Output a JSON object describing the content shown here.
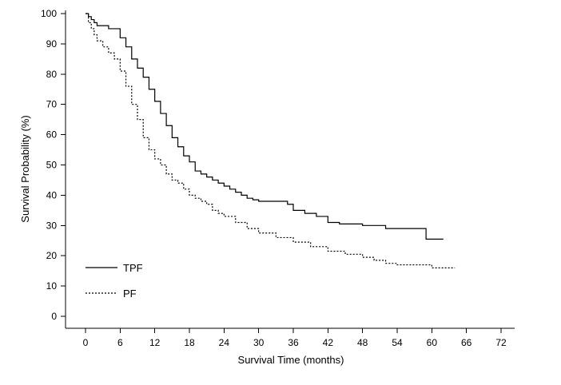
{
  "chart_data": {
    "type": "line",
    "title": "",
    "xlabel": "Survival Time (months)",
    "ylabel": "Survival Probability (%)",
    "xlim": [
      0,
      72
    ],
    "ylim": [
      0,
      100
    ],
    "xticks": [
      0,
      6,
      12,
      18,
      24,
      30,
      36,
      42,
      48,
      54,
      60,
      66,
      72
    ],
    "yticks": [
      0,
      10,
      20,
      30,
      40,
      50,
      60,
      70,
      80,
      90,
      100
    ],
    "grid": false,
    "legend_position": "bottom-left",
    "step": true,
    "series": [
      {
        "name": "TPF",
        "style": "solid",
        "color": "#000000",
        "x": [
          0,
          0.5,
          1,
          1.5,
          2,
          4,
          6,
          7,
          8,
          9,
          10,
          11,
          12,
          13,
          14,
          15,
          16,
          17,
          18,
          19,
          20,
          21,
          22,
          23,
          24,
          25,
          26,
          27,
          28,
          29,
          30,
          33,
          35,
          36,
          38,
          40,
          42,
          44,
          48,
          50,
          52,
          54,
          56,
          58,
          59,
          62
        ],
        "values": [
          100,
          99,
          98,
          97,
          96,
          95,
          92,
          89,
          85,
          82,
          79,
          75,
          71,
          67,
          63,
          59,
          56,
          53,
          51,
          48,
          47,
          46,
          45,
          44,
          43,
          42,
          41,
          40,
          39,
          38.5,
          38,
          38,
          37,
          35,
          34,
          33,
          31,
          30.5,
          30,
          30,
          29,
          29,
          29,
          29,
          25.5,
          25.5
        ]
      },
      {
        "name": "PF",
        "style": "dashed",
        "color": "#000000",
        "x": [
          0,
          0.5,
          1,
          1.5,
          2,
          3,
          4,
          5,
          6,
          7,
          8,
          9,
          10,
          11,
          12,
          13,
          14,
          15,
          16,
          17,
          18,
          19,
          20,
          21,
          22,
          23,
          24,
          26,
          28,
          30,
          33,
          36,
          39,
          42,
          45,
          48,
          50,
          52,
          54,
          56,
          58,
          60,
          62,
          64
        ],
        "values": [
          100,
          97,
          95,
          93,
          91,
          89,
          87,
          85,
          81,
          76,
          70,
          65,
          59,
          55,
          52,
          50,
          47,
          45,
          44,
          42,
          40,
          39,
          38,
          37,
          35,
          34,
          33,
          31,
          29,
          27.5,
          26,
          24.5,
          23,
          21.5,
          20.5,
          19.5,
          18.5,
          17.5,
          17,
          17,
          17,
          16,
          16,
          16
        ]
      }
    ]
  }
}
